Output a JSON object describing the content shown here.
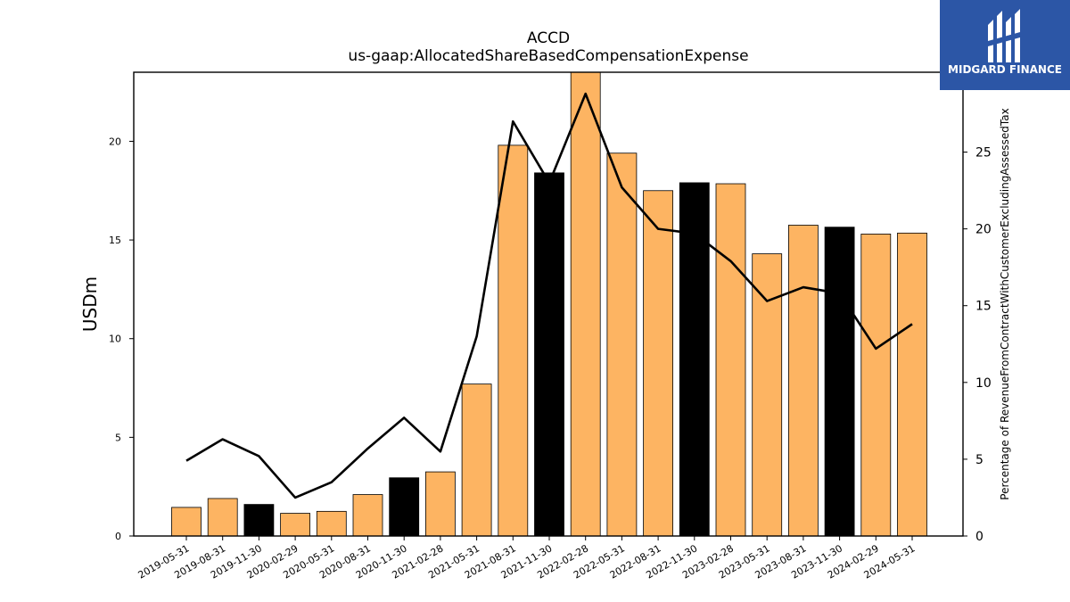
{
  "brand": {
    "name": "MIDGARD FINANCE",
    "background": "#2c56a6"
  },
  "chart_data": {
    "type": "bar",
    "title": "ACCD",
    "subtitle": "us-gaap:AllocatedShareBasedCompensationExpense",
    "ylabel": "USDm",
    "y2label": "Percentage of RevenueFromContractWithCustomerExcludingAssessedTax",
    "ylim": [
      0,
      23.5
    ],
    "y2lim": [
      0,
      30.2
    ],
    "yticks": [
      0,
      5,
      10,
      15,
      20
    ],
    "y2ticks": [
      0,
      5,
      10,
      15,
      20,
      25
    ],
    "categories": [
      "2019-05-31",
      "2019-08-31",
      "2019-11-30",
      "2020-02-29",
      "2020-05-31",
      "2020-08-31",
      "2020-11-30",
      "2021-02-28",
      "2021-05-31",
      "2021-08-31",
      "2021-11-30",
      "2022-02-28",
      "2022-05-31",
      "2022-08-31",
      "2022-11-30",
      "2023-02-28",
      "2023-05-31",
      "2023-08-31",
      "2023-11-30",
      "2024-02-29",
      "2024-05-31"
    ],
    "series": [
      {
        "type": "bar",
        "axis": "left",
        "values": [
          1.45,
          1.9,
          1.6,
          1.15,
          1.25,
          2.1,
          2.95,
          3.25,
          7.7,
          19.8,
          18.4,
          24.2,
          19.4,
          17.5,
          17.9,
          17.85,
          14.3,
          15.75,
          15.65,
          15.3,
          15.35
        ],
        "colors": [
          "#fdb462",
          "#fdb462",
          "#000000",
          "#fdb462",
          "#fdb462",
          "#fdb462",
          "#000000",
          "#fdb462",
          "#fdb462",
          "#fdb462",
          "#000000",
          "#fdb462",
          "#fdb462",
          "#fdb462",
          "#000000",
          "#fdb462",
          "#fdb462",
          "#fdb462",
          "#000000",
          "#fdb462",
          "#fdb462"
        ]
      },
      {
        "type": "line",
        "axis": "right",
        "color": "#000000",
        "values": [
          4.9,
          6.3,
          5.2,
          2.5,
          3.5,
          5.7,
          7.7,
          5.5,
          13.0,
          27.0,
          23.0,
          28.8,
          22.7,
          20.0,
          19.7,
          17.9,
          15.3,
          16.2,
          15.8,
          12.2,
          13.8
        ]
      }
    ],
    "grid": false
  }
}
